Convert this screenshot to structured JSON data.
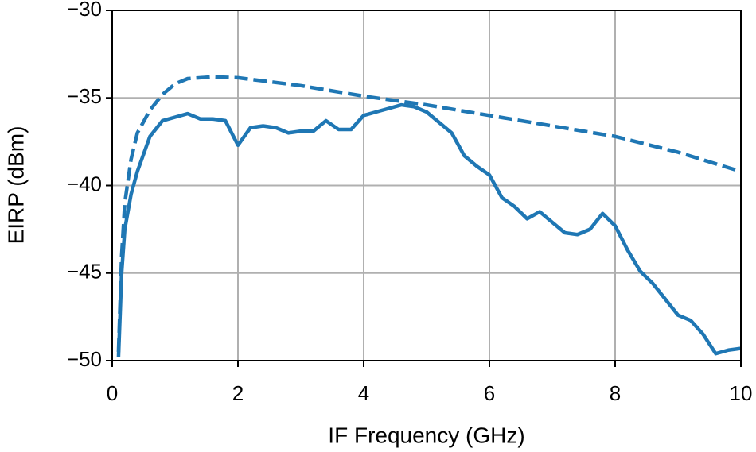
{
  "chart_data": {
    "type": "line",
    "xlabel": "IF Frequency (GHz)",
    "ylabel": "EIRP (dBm)",
    "xlim": [
      0,
      10
    ],
    "xticks": [
      0,
      2,
      4,
      6,
      8,
      10
    ],
    "ylim": [
      -50,
      -30
    ],
    "yticks": [
      {
        "value": -50,
        "label": "−50"
      },
      {
        "value": -45,
        "label": "−45"
      },
      {
        "value": -40,
        "label": "−40"
      },
      {
        "value": -35,
        "label": "−35"
      },
      {
        "value": -30,
        "label": "−30"
      }
    ],
    "grid": true,
    "series": [
      {
        "color": "#1f77b4",
        "linestyle": "solid",
        "x": [
          0.1,
          0.15,
          0.2,
          0.3,
          0.4,
          0.6,
          0.8,
          1.0,
          1.2,
          1.4,
          1.6,
          1.8,
          2.0,
          2.2,
          2.4,
          2.6,
          2.8,
          3.0,
          3.2,
          3.4,
          3.6,
          3.8,
          4.0,
          4.2,
          4.4,
          4.6,
          4.8,
          5.0,
          5.2,
          5.4,
          5.6,
          5.8,
          6.0,
          6.2,
          6.4,
          6.6,
          6.8,
          7.0,
          7.2,
          7.4,
          7.6,
          7.8,
          8.0,
          8.2,
          8.4,
          8.6,
          8.8,
          9.0,
          9.2,
          9.4,
          9.6,
          9.8,
          10.0
        ],
        "values": [
          -49.8,
          -45,
          -42.5,
          -40.5,
          -39.2,
          -37.2,
          -36.3,
          -36.1,
          -35.9,
          -36.2,
          -36.2,
          -36.3,
          -37.7,
          -36.7,
          -36.6,
          -36.7,
          -37.0,
          -36.9,
          -36.9,
          -36.3,
          -36.8,
          -36.8,
          -36.0,
          -35.8,
          -35.6,
          -35.4,
          -35.5,
          -35.8,
          -36.4,
          -37.0,
          -38.3,
          -38.9,
          -39.4,
          -40.7,
          -41.2,
          -41.9,
          -41.5,
          -42.1,
          -42.7,
          -42.8,
          -42.5,
          -41.6,
          -42.3,
          -43.7,
          -44.9,
          -45.6,
          -46.5,
          -47.4,
          -47.7,
          -48.5,
          -49.6,
          -49.4,
          -49.3
        ]
      },
      {
        "color": "#1f77b4",
        "linestyle": "dashed",
        "x": [
          0.1,
          0.15,
          0.2,
          0.3,
          0.4,
          0.6,
          0.8,
          1.0,
          1.2,
          1.6,
          2.0,
          3.0,
          4.0,
          5.0,
          6.0,
          7.0,
          8.0,
          9.0,
          10.0
        ],
        "values": [
          -49.5,
          -44,
          -41,
          -38.5,
          -37,
          -35.7,
          -34.8,
          -34.2,
          -33.9,
          -33.8,
          -33.85,
          -34.3,
          -34.9,
          -35.4,
          -36.0,
          -36.6,
          -37.2,
          -38.1,
          -39.2
        ]
      }
    ]
  }
}
